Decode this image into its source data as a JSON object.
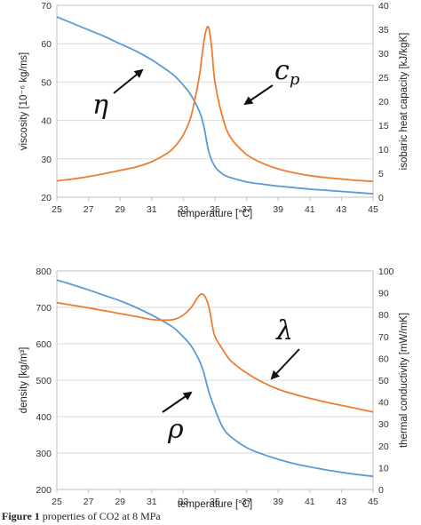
{
  "chart_data": [
    {
      "type": "line",
      "xlabel": "temperature [°C]",
      "ylabel": "viscosity [10⁻⁶ kg/ms]",
      "y2label": "isobaric heat capacity [kJ/kgK]",
      "xlim": [
        25,
        45
      ],
      "ylim": [
        20,
        70
      ],
      "y2lim": [
        0,
        40
      ],
      "xticks": [
        "25",
        "27",
        "29",
        "31",
        "33",
        "35",
        "37",
        "39",
        "41",
        "43",
        "45"
      ],
      "yticks": [
        "20",
        "30",
        "40",
        "50",
        "60",
        "70"
      ],
      "y2ticks": [
        "0",
        "5",
        "10",
        "15",
        "20",
        "25",
        "30",
        "35",
        "40"
      ],
      "grid": "horizontal",
      "series": [
        {
          "axis": "left",
          "color": "#5b9bd5",
          "x": [
            25,
            26,
            27,
            28,
            29,
            30,
            31,
            32,
            32.5,
            33,
            33.5,
            34,
            34.3,
            34.6,
            35,
            35.5,
            36,
            37,
            38,
            39,
            40,
            41,
            42,
            43,
            44,
            45
          ],
          "values": [
            67,
            65.3,
            63.6,
            61.9,
            60,
            58.1,
            55.8,
            53,
            51.4,
            49.2,
            46.5,
            42.5,
            38.5,
            32,
            28,
            26,
            25.1,
            24,
            23.4,
            22.9,
            22.5,
            22.1,
            21.8,
            21.5,
            21.2,
            20.9
          ]
        },
        {
          "axis": "right",
          "color": "#ed7d31",
          "x": [
            25,
            26,
            27,
            28,
            29,
            30,
            31,
            32,
            32.5,
            33,
            33.5,
            34,
            34.2,
            34.4,
            34.6,
            34.8,
            35,
            35.5,
            36,
            37,
            38,
            39,
            40,
            41,
            42,
            43,
            44,
            45
          ],
          "values": [
            3.4,
            3.8,
            4.3,
            4.9,
            5.6,
            6.3,
            7.4,
            9.2,
            10.7,
            13,
            17,
            25,
            30,
            34.3,
            35.4,
            31,
            24,
            16.5,
            12.4,
            8.9,
            7.1,
            5.9,
            5.1,
            4.5,
            4.1,
            3.8,
            3.5,
            3.3
          ]
        }
      ],
      "annotations": [
        {
          "text": "η",
          "target": "viscosity"
        },
        {
          "text": "c",
          "sub": "p",
          "target": "heat capacity"
        }
      ]
    },
    {
      "type": "line",
      "xlabel": "temperature [°C]",
      "ylabel": "density [kg/m³]",
      "y2label": "thermal conductivity [mW/mK]",
      "xlim": [
        25,
        45
      ],
      "ylim": [
        200,
        800
      ],
      "y2lim": [
        0,
        100
      ],
      "xticks": [
        "25",
        "27",
        "29",
        "31",
        "33",
        "35",
        "37",
        "39",
        "41",
        "43",
        "45"
      ],
      "yticks": [
        "200",
        "300",
        "400",
        "500",
        "600",
        "700",
        "800"
      ],
      "y2ticks": [
        "0",
        "10",
        "20",
        "30",
        "40",
        "50",
        "60",
        "70",
        "80",
        "90",
        "100"
      ],
      "grid": "horizontal",
      "series": [
        {
          "axis": "left",
          "color": "#5b9bd5",
          "x": [
            25,
            26,
            27,
            28,
            29,
            30,
            31,
            32,
            32.5,
            33,
            33.5,
            34,
            34.3,
            34.6,
            35,
            35.5,
            36,
            37,
            38,
            39,
            40,
            41,
            42,
            43,
            44,
            45
          ],
          "values": [
            775,
            762,
            748,
            733,
            718,
            700,
            679,
            655,
            640,
            619,
            594,
            555,
            520,
            470,
            420,
            370,
            345,
            315,
            297,
            283,
            271,
            262,
            254,
            247,
            241,
            236
          ]
        },
        {
          "axis": "right",
          "color": "#ed7d31",
          "x": [
            25,
            26,
            27,
            28,
            29,
            30,
            31,
            32,
            32.5,
            33,
            33.5,
            34,
            34.3,
            34.6,
            34.8,
            35,
            35.5,
            36,
            37,
            38,
            39,
            40,
            41,
            42,
            43,
            44,
            45
          ],
          "values": [
            85.5,
            84.3,
            83.1,
            81.8,
            80.5,
            79.2,
            77.8,
            77.5,
            78,
            79.8,
            83.3,
            88.7,
            89,
            84,
            76.5,
            70,
            64,
            58.9,
            53.3,
            49.1,
            45.9,
            43.6,
            41.7,
            40,
            38.5,
            37,
            35.5
          ]
        }
      ],
      "annotations": [
        {
          "text": "λ",
          "target": "thermal conductivity"
        },
        {
          "text": "ρ",
          "target": "density"
        }
      ]
    }
  ],
  "caption": {
    "label": "Figure 1",
    "text": "properties of CO2 at 8 MPa"
  }
}
